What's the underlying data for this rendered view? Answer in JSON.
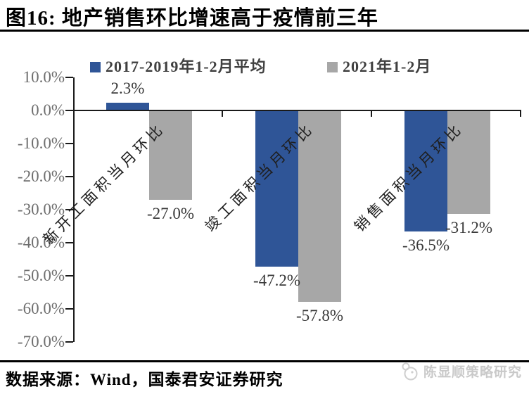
{
  "header": {
    "title": "图16: 地产销售环比增速高于疫情前三年"
  },
  "chart_data": {
    "type": "bar",
    "title": "图16: 地产销售环比增速高于疫情前三年",
    "categories": [
      "新开工面积当月环比",
      "竣工面积当月环比",
      "销售面积当月环比"
    ],
    "series": [
      {
        "name": "2017-2019年1-2月平均",
        "color": "#2F5597",
        "values": [
          2.3,
          -47.2,
          -36.5
        ],
        "labels": [
          "2.3%",
          "-47.2%",
          "-36.5%"
        ]
      },
      {
        "name": "2021年1-2月",
        "color": "#A7A7A7",
        "values": [
          -27.0,
          -57.8,
          -31.2
        ],
        "labels": [
          "-27.0%",
          "-57.8%",
          "-31.2%"
        ]
      }
    ],
    "ylim": [
      -70,
      10
    ],
    "yticks": [
      10,
      0,
      -10,
      -20,
      -30,
      -40,
      -50,
      -60,
      -70
    ],
    "ytick_labels": [
      "10.0%",
      "0.0%",
      "-10.0%",
      "-20.0%",
      "-30.0%",
      "-40.0%",
      "-50.0%",
      "-60.0%",
      "-70.0%"
    ],
    "legend_position": "top",
    "grid": false,
    "axis_color": "#1a1a1a"
  },
  "footer": {
    "source": "数据来源：Wind，国泰君安证券研究",
    "watermark": "陈显顺策略研究"
  }
}
